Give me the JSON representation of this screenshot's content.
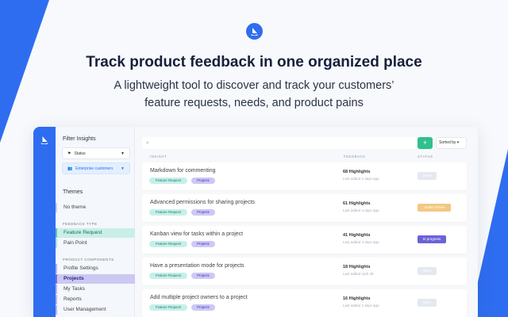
{
  "hero": {
    "title": "Track product feedback in one organized place",
    "subtitle_line1": "A lightweight tool to discover and track your customers’",
    "subtitle_line2": "feature requests, needs, and product pains"
  },
  "colors": {
    "brand": "#2f6df0",
    "add": "#2fc08c",
    "open": "#e4e8ef",
    "under_review": "#f3c882",
    "in_progress": "#6a62d8"
  },
  "filters": {
    "title": "Filter Insights",
    "status": "Status",
    "segment": "Enterprise customers"
  },
  "themes": {
    "title": "Themes",
    "no_theme": "No theme",
    "feedback_type_label": "FEEDBACK TYPE",
    "feedback_types": [
      "Feature Request",
      "Pain Point"
    ],
    "components_label": "PRODUCT COMPONENTS",
    "components": [
      "Profile Settings",
      "Projects",
      "My Tasks",
      "Reports",
      "User Management"
    ]
  },
  "toolbar": {
    "add": "+",
    "sort": "Sorted by"
  },
  "columns": {
    "insight": "INSIGHT",
    "feedback": "FEEDBACK",
    "status": "STATUS"
  },
  "rows": [
    {
      "title": "Markdown for commenting",
      "tags": [
        "Feature Request",
        "Projects"
      ],
      "highlights": "68 Highlights",
      "last": "Last added 2 days ago",
      "status": "Open"
    },
    {
      "title": "Advanced permissions for sharing projects",
      "tags": [
        "Feature Request",
        "Projects"
      ],
      "highlights": "61 Highlights",
      "last": "Last added 4 days ago",
      "status": "Under review"
    },
    {
      "title": "Kanban view for tasks within a project",
      "tags": [
        "Feature Request",
        "Projects"
      ],
      "highlights": "41 Highlights",
      "last": "Last added 3 days ago",
      "status": "In progress"
    },
    {
      "title": "Have a presentation mode for projects",
      "tags": [
        "Feature Request",
        "Projects"
      ],
      "highlights": "18 Highlights",
      "last": "Last added April 29",
      "status": "Open"
    },
    {
      "title": "Add multiple project owners to a project",
      "tags": [
        "Feature Request",
        "Projects"
      ],
      "highlights": "16 Highlights",
      "last": "Last added 2 days ago",
      "status": "Open"
    }
  ]
}
